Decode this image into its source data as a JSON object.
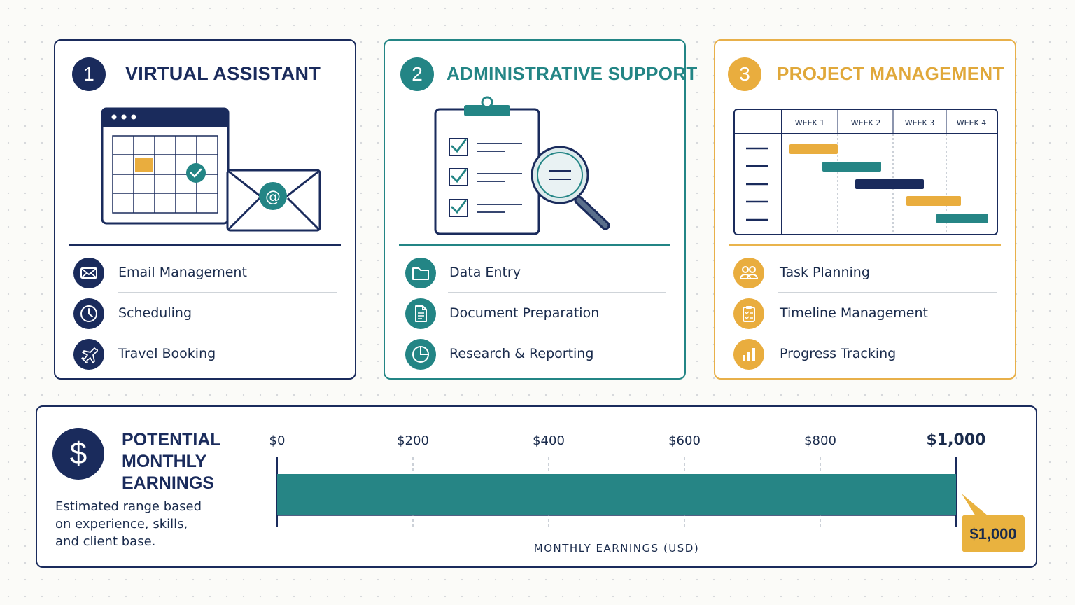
{
  "cards": [
    {
      "number": "1",
      "title": "VIRTUAL ASSISTANT",
      "features": [
        {
          "label": "Email Management",
          "icon": "envelope-icon"
        },
        {
          "label": "Scheduling",
          "icon": "clock-icon"
        },
        {
          "label": "Travel Booking",
          "icon": "airplane-icon"
        }
      ]
    },
    {
      "number": "2",
      "title": "ADMINISTRATIVE SUPPORT",
      "features": [
        {
          "label": "Data Entry",
          "icon": "folder-icon"
        },
        {
          "label": "Document Preparation",
          "icon": "document-icon"
        },
        {
          "label": "Research & Reporting",
          "icon": "pie-chart-icon"
        }
      ]
    },
    {
      "number": "3",
      "title": "PROJECT MANAGEMENT",
      "gantt_weeks": [
        "WEEK 1",
        "WEEK 2",
        "WEEK 3",
        "WEEK 4"
      ],
      "features": [
        {
          "label": "Task Planning",
          "icon": "team-icon"
        },
        {
          "label": "Timeline Management",
          "icon": "checklist-icon"
        },
        {
          "label": "Progress Tracking",
          "icon": "bar-chart-icon"
        }
      ]
    }
  ],
  "earnings": {
    "title": "POTENTIAL MONTHLY EARNINGS",
    "description": "Estimated range based on experience, skills, and client base.",
    "symbol": "$",
    "callout": "$1,000"
  },
  "chart_data": {
    "type": "bar",
    "orientation": "horizontal",
    "xlabel": "MONTHLY EARNINGS (USD)",
    "ticks": [
      "$0",
      "$200",
      "$400",
      "$600",
      "$800",
      "$1,000"
    ],
    "tick_values": [
      0,
      200,
      400,
      600,
      800,
      1000
    ],
    "xlim": [
      0,
      1000
    ],
    "range": [
      0,
      1000
    ],
    "callout": "$1,000",
    "grid": "dashed vertical",
    "colors": {
      "bar": "#268585",
      "callout": "#e9b23f"
    }
  },
  "colors": {
    "navy": "#1a2b5c",
    "teal": "#238585",
    "gold": "#e9ad3e"
  }
}
